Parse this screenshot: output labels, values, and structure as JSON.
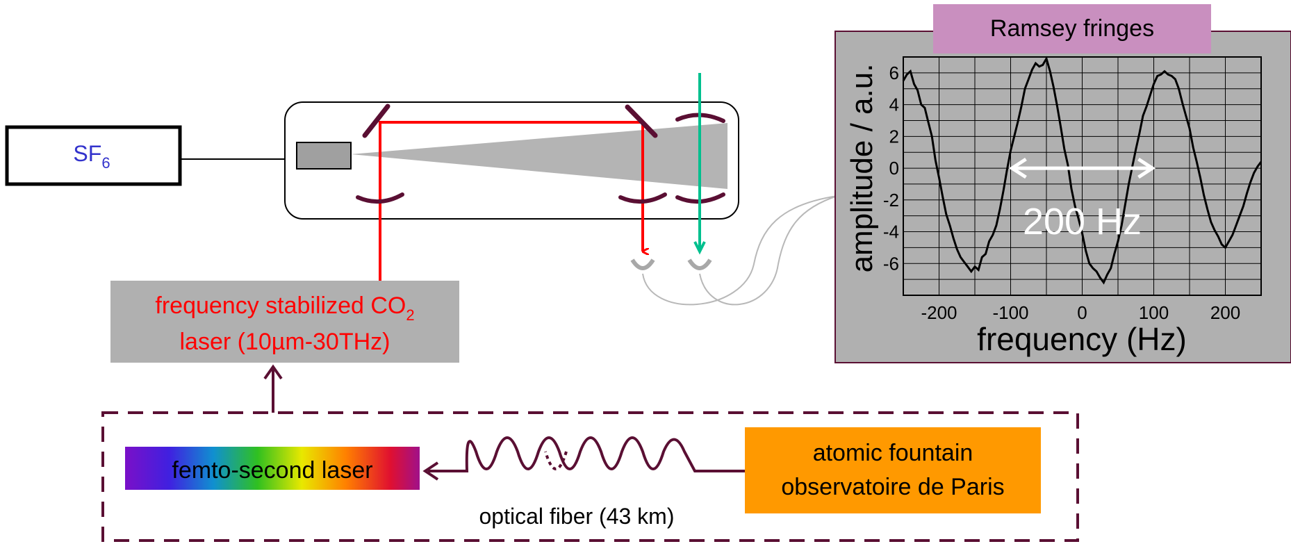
{
  "source_box": {
    "name": "SF",
    "subscript": "6"
  },
  "co2_laser": {
    "line1_main": "frequency stabilized CO",
    "line1_sub": "2",
    "line2": "laser (10µm-30THz)"
  },
  "femto_laser": {
    "label": "femto-second laser"
  },
  "fiber": {
    "label": "optical fiber (43 km)"
  },
  "fountain": {
    "line1": "atomic fountain",
    "line2": "observatoire de Paris"
  },
  "colors": {
    "laser_beam": "#ff0000",
    "probe_beam": "#00c08e",
    "fiber": "#5a0f33",
    "mirror": "#5a0f33",
    "sf6_text": "#3333cc",
    "fountain_box": "#ff9900",
    "title_box": "#c98fbf",
    "plot_panel": "#b0b0b0"
  },
  "chart_data": {
    "type": "line",
    "title": "Ramsey fringes",
    "xlabel": "frequency (Hz)",
    "ylabel": "amplitude / a.u.",
    "xlim": [
      -250,
      250
    ],
    "ylim": [
      -8,
      7
    ],
    "xticks": [
      -200,
      -100,
      0,
      100,
      200
    ],
    "yticks": [
      -6,
      -4,
      -2,
      0,
      2,
      4,
      6
    ],
    "grid": true,
    "annotation": {
      "text": "200 Hz",
      "from_x": -100,
      "to_x": 100,
      "y": 0
    },
    "series": [
      {
        "x": [
          -250,
          -245,
          -240,
          -235,
          -230,
          -225,
          -220,
          -215,
          -210,
          -205,
          -200,
          -195,
          -190,
          -185,
          -180,
          -175,
          -170,
          -165,
          -160,
          -155,
          -150,
          -145,
          -140,
          -135,
          -130,
          -125,
          -120,
          -115,
          -110,
          -105,
          -100,
          -95,
          -90,
          -85,
          -80,
          -75,
          -70,
          -65,
          -60,
          -55,
          -50,
          -45,
          -40,
          -35,
          -30,
          -25,
          -20,
          -15,
          -10,
          -5,
          0,
          5,
          10,
          15,
          20,
          25,
          30,
          35,
          40,
          45,
          50,
          55,
          60,
          65,
          70,
          75,
          80,
          85,
          90,
          95,
          100,
          105,
          110,
          115,
          120,
          125,
          130,
          135,
          140,
          145,
          150,
          155,
          160,
          165,
          170,
          175,
          180,
          185,
          190,
          195,
          200,
          205,
          210,
          215,
          220,
          225,
          230,
          235,
          240,
          245,
          250
        ],
        "y": [
          5.5,
          5.9,
          6.1,
          5.3,
          4.9,
          4.0,
          3.8,
          2.9,
          2.0,
          0.5,
          -0.6,
          -1.8,
          -2.9,
          -3.6,
          -4.4,
          -5.1,
          -5.6,
          -5.9,
          -6.2,
          -6.5,
          -6.2,
          -6.4,
          -5.6,
          -5.4,
          -4.6,
          -4.2,
          -3.6,
          -2.6,
          -1.4,
          -0.1,
          1.1,
          2.0,
          2.9,
          3.9,
          5.0,
          5.6,
          6.2,
          6.6,
          6.4,
          6.5,
          6.9,
          6.1,
          5.1,
          3.9,
          2.6,
          1.2,
          0.2,
          -1.3,
          -2.4,
          -3.2,
          -4.1,
          -5.2,
          -6.0,
          -6.3,
          -6.5,
          -6.9,
          -7.2,
          -6.7,
          -6.3,
          -5.4,
          -4.6,
          -3.6,
          -2.3,
          -1.0,
          0.1,
          1.2,
          2.2,
          3.3,
          3.9,
          4.6,
          5.3,
          5.8,
          5.9,
          6.1,
          5.9,
          5.8,
          5.6,
          5.0,
          4.1,
          3.3,
          2.5,
          1.3,
          0.4,
          -0.6,
          -1.7,
          -2.6,
          -3.4,
          -3.9,
          -4.3,
          -4.8,
          -5.0,
          -4.6,
          -4.2,
          -3.6,
          -3.0,
          -2.4,
          -1.6,
          -0.9,
          -0.3,
          0.1,
          0.4
        ]
      }
    ]
  }
}
